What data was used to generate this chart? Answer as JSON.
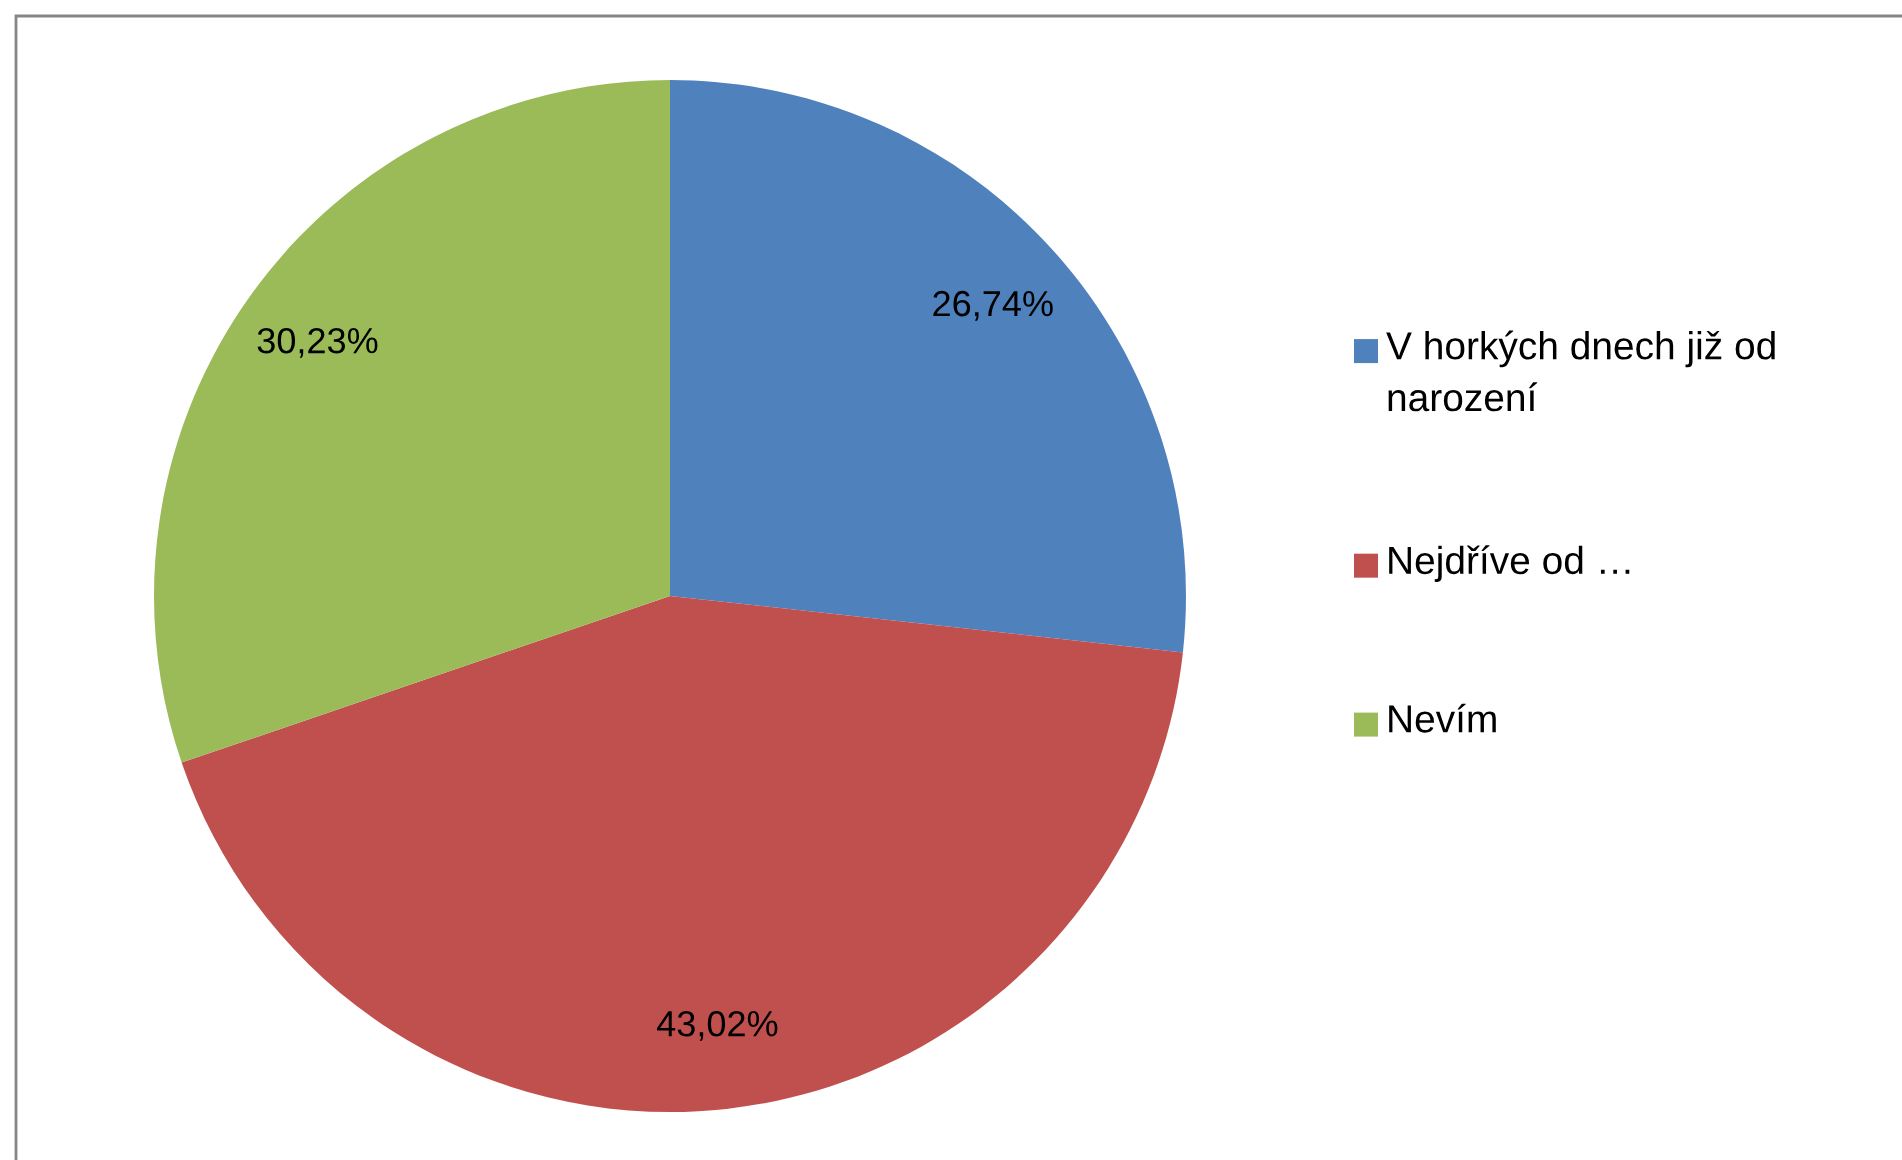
{
  "chart_data": {
    "type": "pie",
    "categories": [
      "V horkých dnech již od narození",
      "Nejdříve od …",
      "Nevím"
    ],
    "values": [
      26.74,
      43.02,
      30.23
    ],
    "colors": [
      "#4f81bd",
      "#c0504d",
      "#9bbb59"
    ],
    "value_labels": [
      "26,74%",
      "43,02%",
      "30,23%"
    ],
    "legend": "right"
  }
}
